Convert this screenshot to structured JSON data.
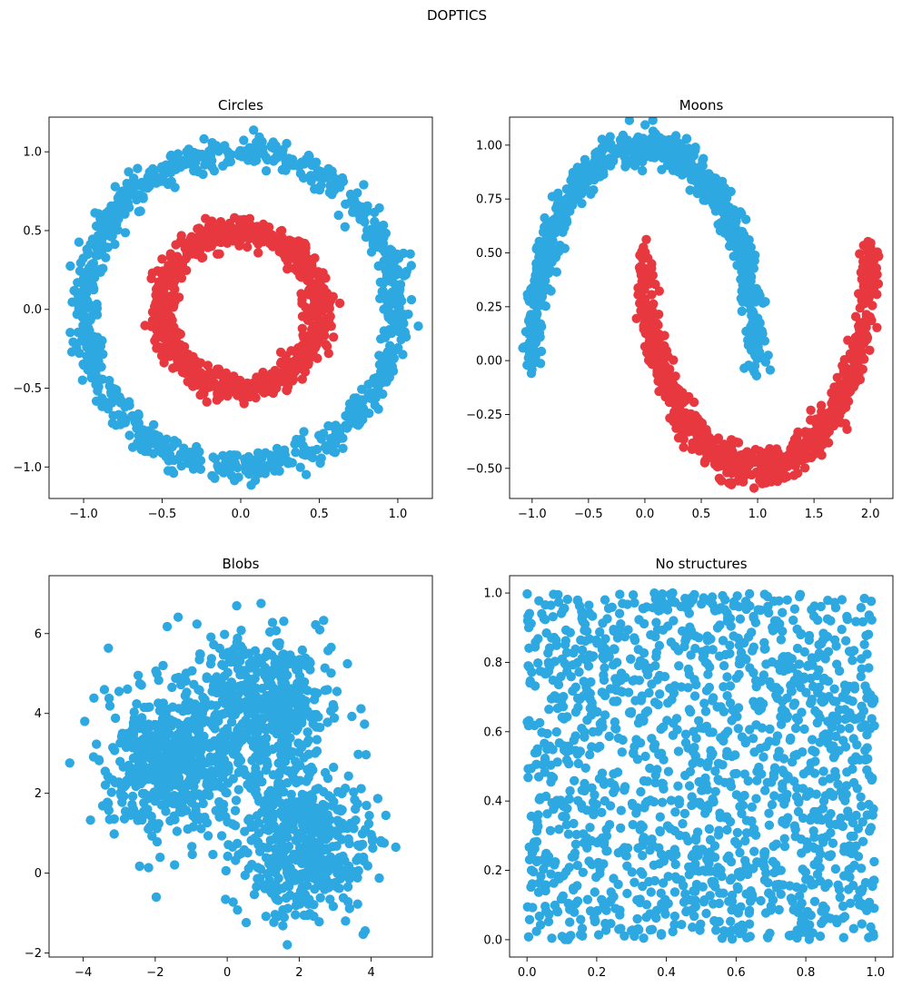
{
  "figure_title": "DOPTICS",
  "colors": {
    "cluster_red": "#E8383F",
    "cluster_blue": "#2EA8E0",
    "axes": "#000000",
    "background": "#ffffff"
  },
  "chart_data": [
    {
      "type": "scatter",
      "title": "Circles",
      "xlabel": "",
      "ylabel": "",
      "xlim": [
        -1.22,
        1.22
      ],
      "ylim": [
        -1.2,
        1.22
      ],
      "xticks": [
        -1.0,
        -0.5,
        0.0,
        0.5,
        1.0
      ],
      "xtick_labels": [
        "−1.0",
        "−0.5",
        "0.0",
        "0.5",
        "1.0"
      ],
      "yticks": [
        -1.0,
        -0.5,
        0.0,
        0.5,
        1.0
      ],
      "ytick_labels": [
        "−1.0",
        "−0.5",
        "0.0",
        "0.5",
        "1.0"
      ],
      "grid": false,
      "dataset": "circles",
      "point_count": 1800,
      "clusters": [
        {
          "color": "#2EA8E0",
          "shape": "ring",
          "radius": 1.0,
          "noise": 0.045
        },
        {
          "color": "#E8383F",
          "shape": "ring",
          "radius": 0.5,
          "noise": 0.045
        }
      ]
    },
    {
      "type": "scatter",
      "title": "Moons",
      "xlabel": "",
      "ylabel": "",
      "xlim": [
        -1.2,
        2.2
      ],
      "ylim": [
        -0.64,
        1.13
      ],
      "xticks": [
        -1.0,
        -0.5,
        0.0,
        0.5,
        1.0,
        1.5,
        2.0
      ],
      "xtick_labels": [
        "−1.0",
        "−0.5",
        "0.0",
        "0.5",
        "1.0",
        "1.5",
        "2.0"
      ],
      "yticks": [
        -0.5,
        -0.25,
        0.0,
        0.25,
        0.5,
        0.75,
        1.0
      ],
      "ytick_labels": [
        "−0.50",
        "−0.25",
        "0.00",
        "0.25",
        "0.50",
        "0.75",
        "1.00"
      ],
      "grid": false,
      "dataset": "moons",
      "point_count": 1500,
      "clusters": [
        {
          "color": "#2EA8E0",
          "shape": "upper-moon",
          "center": [
            0.0,
            0.0
          ],
          "noise": 0.045
        },
        {
          "color": "#E8383F",
          "shape": "lower-moon",
          "center": [
            1.0,
            0.5
          ],
          "noise": 0.045
        }
      ]
    },
    {
      "type": "scatter",
      "title": "Blobs",
      "xlabel": "",
      "ylabel": "",
      "xlim": [
        -4.95,
        5.7
      ],
      "ylim": [
        -2.1,
        7.45
      ],
      "xticks": [
        -4,
        -2,
        0,
        2,
        4
      ],
      "xtick_labels": [
        "−4",
        "−2",
        "0",
        "2",
        "4"
      ],
      "yticks": [
        -2,
        0,
        2,
        4,
        6
      ],
      "ytick_labels": [
        "−2",
        "0",
        "2",
        "4",
        "6"
      ],
      "grid": false,
      "dataset": "blobs",
      "point_count": 1500,
      "clusters": [
        {
          "color": "#2EA8E0",
          "center": [
            -1.6,
            2.8
          ],
          "std": 0.95
        },
        {
          "color": "#2EA8E0",
          "center": [
            0.9,
            4.1
          ],
          "std": 0.95
        },
        {
          "color": "#2EA8E0",
          "center": [
            2.1,
            0.8
          ],
          "std": 0.95
        }
      ]
    },
    {
      "type": "scatter",
      "title": "No structures",
      "xlabel": "",
      "ylabel": "",
      "xlim": [
        -0.05,
        1.05
      ],
      "ylim": [
        -0.05,
        1.05
      ],
      "xticks": [
        0.0,
        0.2,
        0.4,
        0.6,
        0.8,
        1.0
      ],
      "xtick_labels": [
        "0.0",
        "0.2",
        "0.4",
        "0.6",
        "0.8",
        "1.0"
      ],
      "yticks": [
        0.0,
        0.2,
        0.4,
        0.6,
        0.8,
        1.0
      ],
      "ytick_labels": [
        "0.0",
        "0.2",
        "0.4",
        "0.6",
        "0.8",
        "1.0"
      ],
      "grid": false,
      "dataset": "uniform",
      "point_count": 1500,
      "clusters": [
        {
          "color": "#2EA8E0",
          "bounds": [
            [
              0,
              1
            ],
            [
              0,
              1
            ]
          ]
        }
      ]
    }
  ]
}
